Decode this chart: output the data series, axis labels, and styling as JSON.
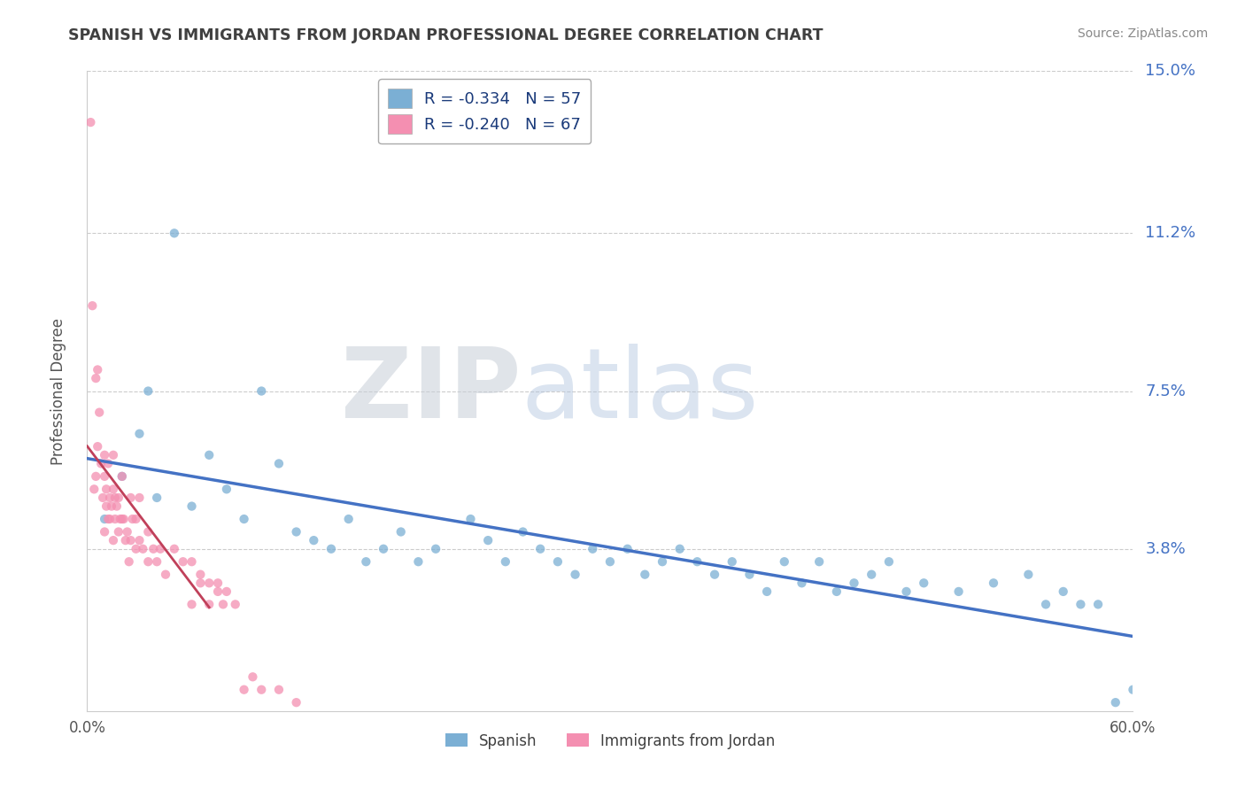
{
  "title": "SPANISH VS IMMIGRANTS FROM JORDAN PROFESSIONAL DEGREE CORRELATION CHART",
  "source_text": "Source: ZipAtlas.com",
  "ylabel": "Professional Degree",
  "legend_entries": [
    {
      "label": "R = -0.334   N = 57",
      "color": "#a8c4e0"
    },
    {
      "label": "R = -0.240   N = 67",
      "color": "#f4a7b9"
    }
  ],
  "legend_bottom": [
    "Spanish",
    "Immigrants from Jordan"
  ],
  "xlim": [
    0.0,
    60.0
  ],
  "ylim": [
    0.0,
    15.0
  ],
  "ytick_vals": [
    0.0,
    3.8,
    7.5,
    11.2,
    15.0
  ],
  "ytick_labels": [
    "",
    "3.8%",
    "7.5%",
    "11.2%",
    "15.0%"
  ],
  "scatter_color_spanish": "#7bafd4",
  "scatter_color_jordan": "#f48fb1",
  "line_color_spanish": "#4472c4",
  "line_color_jordan": "#c0405a",
  "watermark_zip": "ZIP",
  "watermark_atlas": "atlas",
  "background_color": "#ffffff",
  "grid_color": "#cccccc",
  "right_label_color": "#4472c4",
  "title_color": "#404040",
  "spanish_x": [
    1.0,
    2.0,
    3.0,
    3.5,
    4.0,
    5.0,
    6.0,
    7.0,
    8.0,
    9.0,
    10.0,
    11.0,
    12.0,
    13.0,
    14.0,
    15.0,
    16.0,
    17.0,
    18.0,
    19.0,
    20.0,
    22.0,
    23.0,
    24.0,
    25.0,
    26.0,
    27.0,
    28.0,
    29.0,
    30.0,
    31.0,
    32.0,
    33.0,
    34.0,
    35.0,
    36.0,
    37.0,
    38.0,
    39.0,
    40.0,
    41.0,
    42.0,
    43.0,
    44.0,
    45.0,
    46.0,
    47.0,
    48.0,
    50.0,
    52.0,
    54.0,
    55.0,
    56.0,
    57.0,
    58.0,
    59.0,
    60.0
  ],
  "spanish_y": [
    4.5,
    5.5,
    6.5,
    7.5,
    5.0,
    11.2,
    4.8,
    6.0,
    5.2,
    4.5,
    7.5,
    5.8,
    4.2,
    4.0,
    3.8,
    4.5,
    3.5,
    3.8,
    4.2,
    3.5,
    3.8,
    4.5,
    4.0,
    3.5,
    4.2,
    3.8,
    3.5,
    3.2,
    3.8,
    3.5,
    3.8,
    3.2,
    3.5,
    3.8,
    3.5,
    3.2,
    3.5,
    3.2,
    2.8,
    3.5,
    3.0,
    3.5,
    2.8,
    3.0,
    3.2,
    3.5,
    2.8,
    3.0,
    2.8,
    3.0,
    3.2,
    2.5,
    2.8,
    2.5,
    2.5,
    0.2,
    0.5
  ],
  "jordan_x": [
    0.2,
    0.3,
    0.4,
    0.5,
    0.5,
    0.6,
    0.6,
    0.7,
    0.8,
    0.9,
    1.0,
    1.0,
    1.0,
    1.1,
    1.1,
    1.2,
    1.2,
    1.3,
    1.3,
    1.4,
    1.5,
    1.5,
    1.5,
    1.6,
    1.6,
    1.7,
    1.8,
    1.8,
    1.9,
    2.0,
    2.0,
    2.1,
    2.2,
    2.3,
    2.4,
    2.5,
    2.5,
    2.6,
    2.8,
    2.8,
    3.0,
    3.0,
    3.2,
    3.5,
    3.5,
    3.8,
    4.0,
    4.2,
    4.5,
    5.0,
    5.5,
    6.0,
    6.0,
    6.5,
    6.5,
    7.0,
    7.0,
    7.5,
    7.5,
    7.8,
    8.0,
    8.5,
    9.0,
    9.5,
    10.0,
    11.0,
    12.0
  ],
  "jordan_y": [
    13.8,
    9.5,
    5.2,
    7.8,
    5.5,
    8.0,
    6.2,
    7.0,
    5.8,
    5.0,
    5.5,
    6.0,
    4.2,
    4.8,
    5.2,
    4.5,
    5.8,
    5.0,
    4.5,
    4.8,
    5.2,
    4.0,
    6.0,
    4.5,
    5.0,
    4.8,
    4.2,
    5.0,
    4.5,
    4.5,
    5.5,
    4.5,
    4.0,
    4.2,
    3.5,
    4.0,
    5.0,
    4.5,
    3.8,
    4.5,
    4.0,
    5.0,
    3.8,
    3.5,
    4.2,
    3.8,
    3.5,
    3.8,
    3.2,
    3.8,
    3.5,
    3.5,
    2.5,
    3.2,
    3.0,
    2.5,
    3.0,
    3.0,
    2.8,
    2.5,
    2.8,
    2.5,
    0.5,
    0.8,
    0.5,
    0.5,
    0.2
  ]
}
